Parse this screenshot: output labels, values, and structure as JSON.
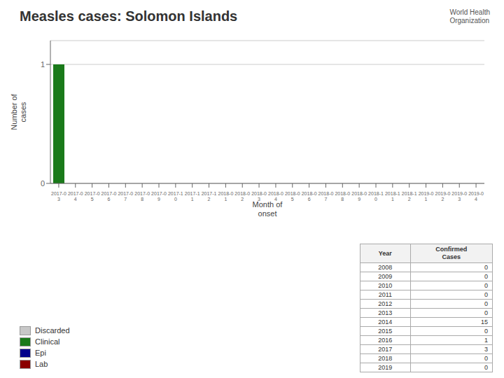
{
  "chart_data": {
    "type": "bar",
    "title": "Measles cases: Solomon Islands",
    "annotations": [
      "World Health\nOrganization"
    ],
    "xlabel": "Month of\nonset",
    "ylabel": "Number of\ncases",
    "categories": [
      "2017-0\n3",
      "2017-0\n4",
      "2017-0\n5",
      "2017-0\n6",
      "2017-0\n7",
      "2017-0\n8",
      "2017-0\n9",
      "2017-1\n0",
      "2017-1\n1",
      "2017-1\n2",
      "2018-0\n1",
      "2018-0\n2",
      "2018-0\n3",
      "2018-0\n4",
      "2018-0\n5",
      "2018-0\n6",
      "2018-0\n7",
      "2018-0\n8",
      "2018-0\n9",
      "2018-1\n0",
      "2018-1\n1",
      "2018-1\n2",
      "2019-0\n1",
      "2019-0\n2",
      "2019-0\n3",
      "2019-0\n4"
    ],
    "series": [
      {
        "name": "Discarded",
        "color": "#c8c8c8",
        "values": [
          0,
          0,
          0,
          0,
          0,
          0,
          0,
          0,
          0,
          0,
          0,
          0,
          0,
          0,
          0,
          0,
          0,
          0,
          0,
          0,
          0,
          0,
          0,
          0,
          0,
          0
        ]
      },
      {
        "name": "Clinical",
        "color": "#1a7a1a",
        "values": [
          1,
          0,
          0,
          0,
          0,
          0,
          0,
          0,
          0,
          0,
          0,
          0,
          0,
          0,
          0,
          0,
          0,
          0,
          0,
          0,
          0,
          0,
          0,
          0,
          0,
          0
        ]
      },
      {
        "name": "Epi",
        "color": "#00008B",
        "values": [
          null,
          null,
          null,
          null,
          null,
          null,
          null,
          null,
          null,
          null,
          null,
          null,
          null,
          null,
          null,
          null,
          null,
          null,
          null,
          null,
          null,
          null,
          null,
          null,
          null,
          null
        ]
      },
      {
        "name": "Lab",
        "color": "#8B0000",
        "values": [
          null,
          null,
          null,
          null,
          null,
          null,
          null,
          null,
          null,
          null,
          null,
          null,
          null,
          null,
          null,
          null,
          null,
          null,
          null,
          null,
          null,
          null,
          null,
          null,
          null,
          null
        ]
      }
    ],
    "ylim": [
      0,
      1.2
    ],
    "yticks": [
      0,
      1
    ],
    "grid": true,
    "legend": "lower left",
    "table": {
      "columns": [
        "Year",
        "Confirmed\nCases"
      ],
      "rows": [
        [
          2008,
          0
        ],
        [
          2009,
          0
        ],
        [
          2010,
          0
        ],
        [
          2011,
          0
        ],
        [
          2012,
          0
        ],
        [
          2013,
          0
        ],
        [
          2014,
          15
        ],
        [
          2015,
          0
        ],
        [
          2016,
          1
        ],
        [
          2017,
          3
        ],
        [
          2018,
          0
        ],
        [
          2019,
          0
        ]
      ]
    }
  }
}
